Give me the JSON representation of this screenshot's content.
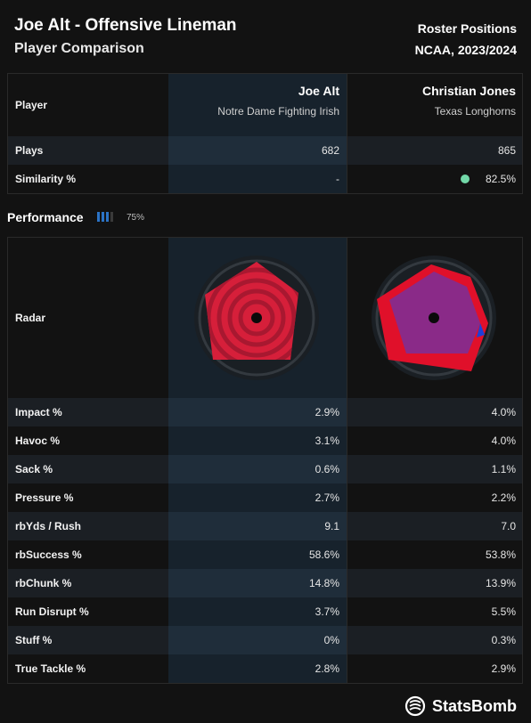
{
  "header": {
    "title": "Joe Alt - Offensive Lineman",
    "subtitle": "Player Comparison",
    "right_line1": "Roster Positions",
    "right_line2": "NCAA, 2023/2024"
  },
  "players": {
    "label": "Player",
    "p1": {
      "name": "Joe Alt",
      "team": "Notre Dame Fighting Irish"
    },
    "p2": {
      "name": "Christian Jones",
      "team": "Texas Longhorns"
    }
  },
  "info_rows": [
    {
      "label": "Plays",
      "v1": "682",
      "v2": "865"
    },
    {
      "label": "Similarity %",
      "v1": "-",
      "v2": "82.5%"
    }
  ],
  "performance": {
    "label": "Performance",
    "pct": "75%",
    "level": 0.75
  },
  "radar_label": "Radar",
  "colors": {
    "p1_fill": "#d61f3a",
    "p2_fill": "#e0102a",
    "p2_inner": "#8a2a88",
    "highlight": "#1f2d3a",
    "similarity_dot": "#72d8a8"
  },
  "chart_data": {
    "type": "table",
    "metrics": [
      "Impact %",
      "Havoc %",
      "Sack %",
      "Pressure %",
      "rbYds / Rush",
      "rbSuccess %",
      "rbChunk %",
      "Run Disrupt %",
      "Stuff %",
      "True Tackle %"
    ],
    "series": [
      {
        "name": "Joe Alt",
        "values": [
          "2.9%",
          "3.1%",
          "0.6%",
          "2.7%",
          "9.1",
          "58.6%",
          "14.8%",
          "3.7%",
          "0%",
          "2.8%"
        ]
      },
      {
        "name": "Christian Jones",
        "values": [
          "4.0%",
          "4.0%",
          "1.1%",
          "2.2%",
          "7.0",
          "53.8%",
          "13.9%",
          "5.5%",
          "0.3%",
          "2.9%"
        ]
      }
    ]
  },
  "logo": "StatsBomb"
}
